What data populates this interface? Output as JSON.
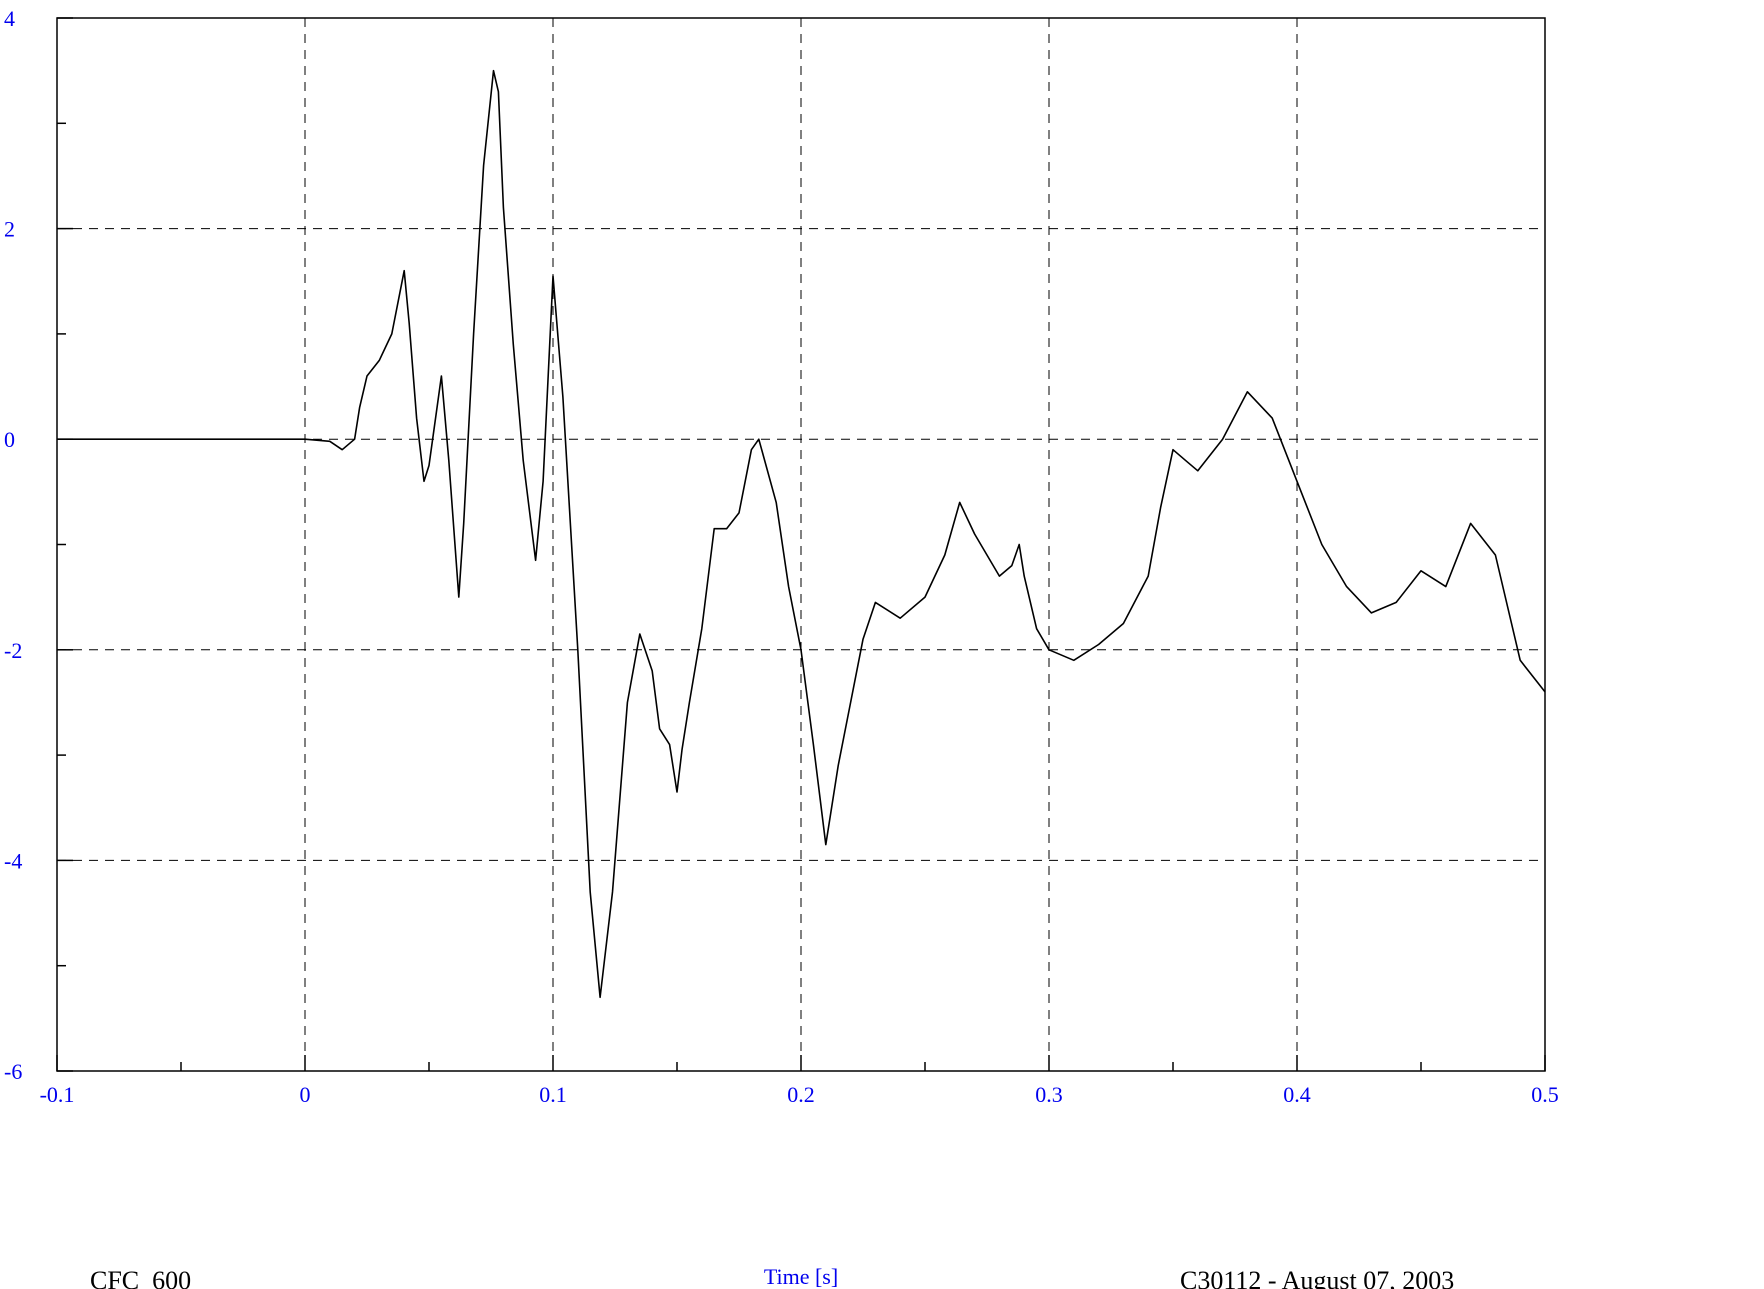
{
  "chart_data": {
    "type": "line",
    "title": "",
    "xlabel": "Time [s]",
    "ylabel": "",
    "xlim": [
      -0.1,
      0.5
    ],
    "ylim": [
      -6,
      4
    ],
    "grid": true,
    "x_ticks": [
      -0.1,
      0,
      0.1,
      0.2,
      0.3,
      0.4,
      0.5
    ],
    "x_tick_labels": [
      "-0.1",
      "0",
      "0.1",
      "0.2",
      "0.3",
      "0.4",
      "0.5"
    ],
    "x_minor_ticks": [
      -0.05,
      0.05,
      0.15,
      0.25,
      0.35,
      0.45
    ],
    "y_ticks": [
      -6,
      -4,
      -2,
      0,
      2,
      4
    ],
    "y_tick_labels": [
      "-6",
      "-4",
      "-2",
      "0",
      "2",
      "4"
    ],
    "y_minor_ticks": [
      -5,
      -3,
      -1,
      1,
      3
    ],
    "series": [
      {
        "color": "#000000",
        "x": [
          -0.1,
          -0.05,
          0.0,
          0.01,
          0.015,
          0.02,
          0.022,
          0.025,
          0.03,
          0.035,
          0.04,
          0.042,
          0.045,
          0.048,
          0.05,
          0.055,
          0.058,
          0.062,
          0.064,
          0.068,
          0.072,
          0.076,
          0.078,
          0.08,
          0.084,
          0.088,
          0.093,
          0.096,
          0.1,
          0.104,
          0.11,
          0.115,
          0.119,
          0.124,
          0.13,
          0.135,
          0.14,
          0.143,
          0.147,
          0.15,
          0.152,
          0.155,
          0.16,
          0.165,
          0.17,
          0.175,
          0.18,
          0.183,
          0.19,
          0.195,
          0.2,
          0.205,
          0.21,
          0.215,
          0.22,
          0.225,
          0.23,
          0.24,
          0.25,
          0.258,
          0.264,
          0.27,
          0.28,
          0.285,
          0.288,
          0.29,
          0.295,
          0.3,
          0.31,
          0.32,
          0.33,
          0.34,
          0.345,
          0.35,
          0.355,
          0.36,
          0.37,
          0.38,
          0.39,
          0.4,
          0.41,
          0.42,
          0.43,
          0.44,
          0.45,
          0.46,
          0.47,
          0.48,
          0.49,
          0.5
        ],
        "y": [
          0.0,
          0.0,
          0.0,
          -0.02,
          -0.1,
          0.0,
          0.3,
          0.6,
          0.75,
          1.0,
          1.6,
          1.1,
          0.2,
          -0.4,
          -0.25,
          0.6,
          -0.2,
          -1.5,
          -0.8,
          1.0,
          2.6,
          3.5,
          3.3,
          2.2,
          0.9,
          -0.2,
          -1.15,
          -0.4,
          1.55,
          0.4,
          -2.0,
          -4.3,
          -5.3,
          -4.3,
          -2.5,
          -1.85,
          -2.2,
          -2.75,
          -2.9,
          -3.35,
          -2.95,
          -2.5,
          -1.8,
          -0.85,
          -0.85,
          -0.7,
          -0.1,
          0.0,
          -0.6,
          -1.4,
          -2.0,
          -2.9,
          -3.85,
          -3.1,
          -2.5,
          -1.9,
          -1.55,
          -1.7,
          -1.5,
          -1.1,
          -0.6,
          -0.9,
          -1.3,
          -1.2,
          -1.0,
          -1.3,
          -1.8,
          -2.0,
          -2.1,
          -1.95,
          -1.75,
          -1.3,
          -0.65,
          -0.1,
          -0.2,
          -0.3,
          0.0,
          0.45,
          0.2,
          -0.4,
          -1.0,
          -1.4,
          -1.65,
          -1.55,
          -1.25,
          -1.4,
          -0.8,
          -1.1,
          -2.1,
          -2.4
        ]
      }
    ]
  },
  "footer": {
    "filter_label": "CFC_600",
    "test_label": "C30112 - August 07, 2003"
  }
}
